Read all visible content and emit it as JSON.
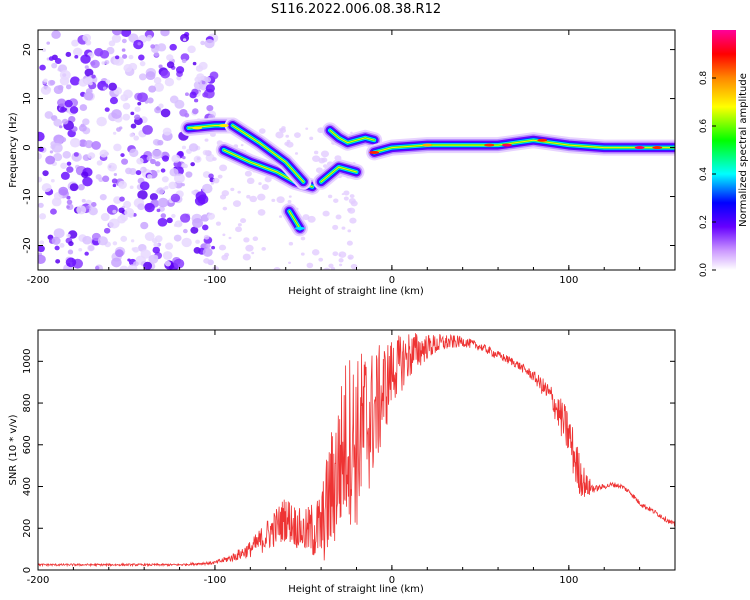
{
  "title": "S116.2022.006.08.38.R12",
  "chart_data": [
    {
      "type": "heatmap",
      "xlabel": "Height of straight line (km)",
      "ylabel": "Frequency (Hz)",
      "xlim": [
        -200,
        160
      ],
      "ylim": [
        -25,
        24
      ],
      "x_ticks": [
        -200,
        -100,
        0,
        100
      ],
      "y_ticks": [
        -20,
        -10,
        0,
        10,
        20
      ],
      "colorbar": {
        "label": "Normalized spectral amplitude",
        "range": [
          0,
          1
        ],
        "ticks": [
          "0.0",
          "0.2",
          "0.4",
          "0.6",
          "0.8"
        ],
        "colors": [
          "#ffffff",
          "#cc99ff",
          "#6600ff",
          "#0000ff",
          "#00ffff",
          "#00ff00",
          "#ffff00",
          "#ff8800",
          "#ff0000",
          "#ff0099"
        ]
      },
      "ridge_segments": [
        {
          "x": [
            -115,
            -100,
            -90
          ],
          "y": [
            4,
            4.5,
            4.5
          ]
        },
        {
          "x": [
            -95,
            -80,
            -65,
            -55,
            -45
          ],
          "y": [
            -0.5,
            -3,
            -5,
            -7,
            -8
          ]
        },
        {
          "x": [
            -90,
            -75,
            -60,
            -50
          ],
          "y": [
            4.5,
            1,
            -3,
            -7
          ]
        },
        {
          "x": [
            -58,
            -52
          ],
          "y": [
            -13,
            -16.5
          ]
        },
        {
          "x": [
            -40,
            -30,
            -20
          ],
          "y": [
            -7,
            -4,
            -5
          ]
        },
        {
          "x": [
            -35,
            -30,
            -25,
            -20,
            -15,
            -10
          ],
          "y": [
            3.5,
            2,
            1,
            1.5,
            2,
            1.5
          ]
        },
        {
          "x": [
            -10,
            0,
            20,
            40,
            60,
            80,
            100,
            120,
            160
          ],
          "y": [
            -1,
            0,
            0.5,
            0.5,
            0.5,
            1.5,
            0.5,
            0,
            0
          ]
        }
      ]
    },
    {
      "type": "line",
      "xlabel": "Height of straight line (km)",
      "ylabel": "SNR (10 * v/v)",
      "xlim": [
        -200,
        160
      ],
      "ylim": [
        0,
        1150
      ],
      "x_ticks": [
        -200,
        -100,
        0,
        100
      ],
      "y_ticks": [
        0,
        200,
        400,
        600,
        800,
        1000
      ],
      "series": [
        {
          "color": "#ee3333",
          "x": [
            -200,
            -180,
            -160,
            -140,
            -120,
            -100,
            -90,
            -80,
            -70,
            -60,
            -50,
            -40,
            -35,
            -30,
            -25,
            -20,
            -15,
            -10,
            -5,
            0,
            10,
            20,
            30,
            40,
            50,
            60,
            70,
            80,
            90,
            100,
            105,
            110,
            115,
            120,
            125,
            130,
            135,
            140,
            150,
            160
          ],
          "y": [
            25,
            25,
            25,
            25,
            25,
            35,
            60,
            100,
            170,
            250,
            180,
            200,
            350,
            500,
            650,
            600,
            700,
            750,
            850,
            950,
            1030,
            1070,
            1090,
            1095,
            1070,
            1030,
            990,
            930,
            830,
            650,
            480,
            400,
            390,
            400,
            410,
            400,
            370,
            320,
            270,
            215
          ],
          "noise": [
            5,
            5,
            5,
            5,
            5,
            8,
            20,
            40,
            80,
            110,
            100,
            180,
            300,
            360,
            420,
            420,
            400,
            300,
            250,
            160,
            120,
            60,
            40,
            25,
            20,
            20,
            20,
            25,
            60,
            120,
            120,
            60,
            15,
            12,
            12,
            12,
            12,
            12,
            12,
            12
          ]
        }
      ]
    }
  ]
}
